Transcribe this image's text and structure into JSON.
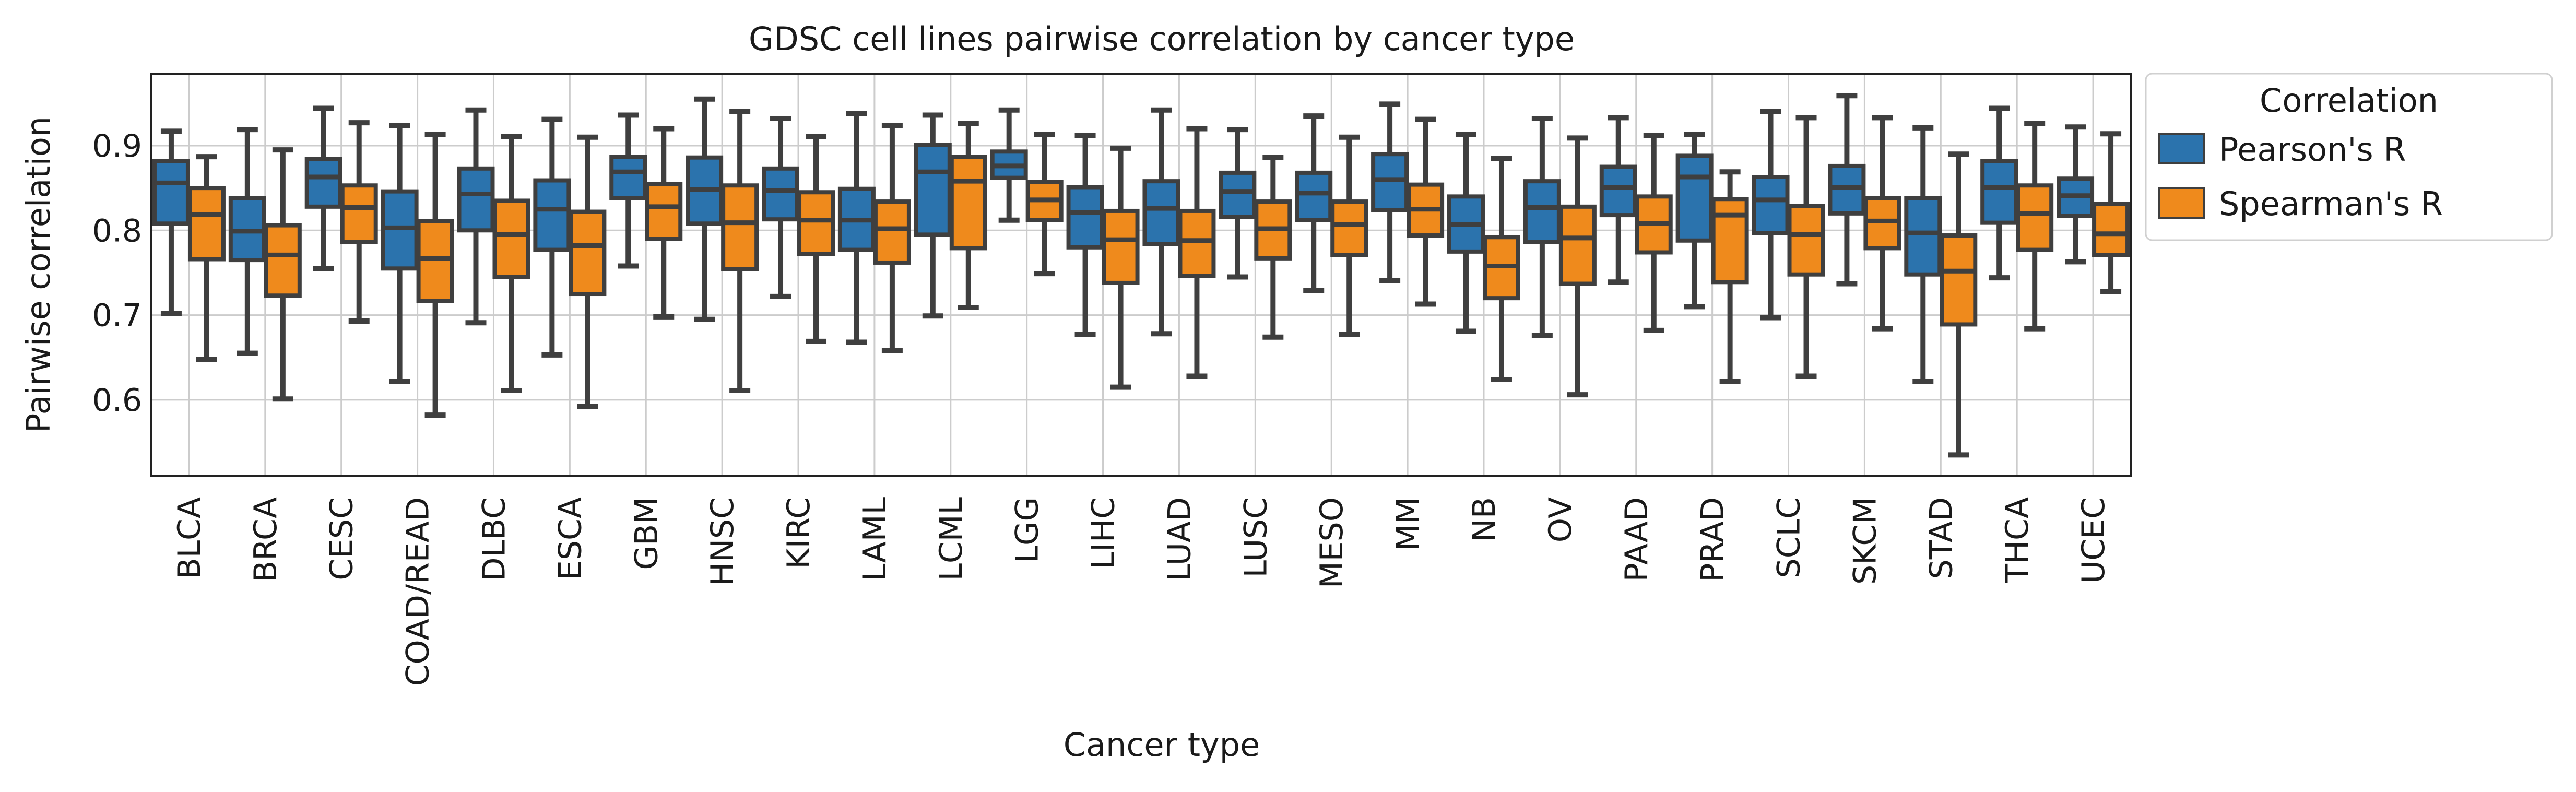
{
  "chart_data": {
    "type": "box",
    "title": "GDSC cell lines pairwise correlation by cancer type",
    "xlabel": "Cancer type",
    "ylabel": "Pairwise correlation",
    "ylim": [
      0.51,
      0.985
    ],
    "yticks": [
      0.6,
      0.7,
      0.8,
      0.9
    ],
    "ytick_labels": [
      "0.6",
      "0.7",
      "0.8",
      "0.9"
    ],
    "grid": true,
    "legend": {
      "title": "Correlation",
      "placement": "outside-top-right"
    },
    "categories": [
      "BLCA",
      "BRCA",
      "CESC",
      "COAD/READ",
      "DLBC",
      "ESCA",
      "GBM",
      "HNSC",
      "KIRC",
      "LAML",
      "LCML",
      "LGG",
      "LIHC",
      "LUAD",
      "LUSC",
      "MESO",
      "MM",
      "NB",
      "OV",
      "PAAD",
      "PRAD",
      "SCLC",
      "SKCM",
      "STAD",
      "THCA",
      "UCEC"
    ],
    "series": [
      {
        "name": "Pearson's R",
        "color": "#2b73ad",
        "boxes": [
          {
            "whislo": 0.702,
            "q1": 0.808,
            "med": 0.856,
            "q3": 0.882,
            "whishi": 0.917
          },
          {
            "whislo": 0.655,
            "q1": 0.765,
            "med": 0.799,
            "q3": 0.838,
            "whishi": 0.919
          },
          {
            "whislo": 0.755,
            "q1": 0.828,
            "med": 0.863,
            "q3": 0.884,
            "whishi": 0.944
          },
          {
            "whislo": 0.622,
            "q1": 0.755,
            "med": 0.803,
            "q3": 0.846,
            "whishi": 0.924
          },
          {
            "whislo": 0.691,
            "q1": 0.8,
            "med": 0.843,
            "q3": 0.873,
            "whishi": 0.942
          },
          {
            "whislo": 0.653,
            "q1": 0.777,
            "med": 0.825,
            "q3": 0.859,
            "whishi": 0.931
          },
          {
            "whislo": 0.758,
            "q1": 0.838,
            "med": 0.869,
            "q3": 0.887,
            "whishi": 0.936
          },
          {
            "whislo": 0.695,
            "q1": 0.808,
            "med": 0.848,
            "q3": 0.886,
            "whishi": 0.955
          },
          {
            "whislo": 0.722,
            "q1": 0.813,
            "med": 0.847,
            "q3": 0.873,
            "whishi": 0.932
          },
          {
            "whislo": 0.668,
            "q1": 0.777,
            "med": 0.812,
            "q3": 0.849,
            "whishi": 0.938
          },
          {
            "whislo": 0.699,
            "q1": 0.795,
            "med": 0.869,
            "q3": 0.901,
            "whishi": 0.936
          },
          {
            "whislo": 0.812,
            "q1": 0.862,
            "med": 0.876,
            "q3": 0.893,
            "whishi": 0.942
          },
          {
            "whislo": 0.677,
            "q1": 0.78,
            "med": 0.821,
            "q3": 0.851,
            "whishi": 0.912
          },
          {
            "whislo": 0.678,
            "q1": 0.784,
            "med": 0.826,
            "q3": 0.858,
            "whishi": 0.942
          },
          {
            "whislo": 0.745,
            "q1": 0.816,
            "med": 0.846,
            "q3": 0.868,
            "whishi": 0.919
          },
          {
            "whislo": 0.729,
            "q1": 0.812,
            "med": 0.844,
            "q3": 0.868,
            "whishi": 0.935
          },
          {
            "whislo": 0.741,
            "q1": 0.824,
            "med": 0.86,
            "q3": 0.89,
            "whishi": 0.949
          },
          {
            "whislo": 0.681,
            "q1": 0.775,
            "med": 0.807,
            "q3": 0.84,
            "whishi": 0.913
          },
          {
            "whislo": 0.676,
            "q1": 0.786,
            "med": 0.827,
            "q3": 0.858,
            "whishi": 0.932
          },
          {
            "whislo": 0.739,
            "q1": 0.818,
            "med": 0.851,
            "q3": 0.875,
            "whishi": 0.933
          },
          {
            "whislo": 0.71,
            "q1": 0.788,
            "med": 0.863,
            "q3": 0.888,
            "whishi": 0.913
          },
          {
            "whislo": 0.697,
            "q1": 0.797,
            "med": 0.836,
            "q3": 0.863,
            "whishi": 0.94
          },
          {
            "whislo": 0.737,
            "q1": 0.82,
            "med": 0.851,
            "q3": 0.876,
            "whishi": 0.959
          },
          {
            "whislo": 0.622,
            "q1": 0.748,
            "med": 0.797,
            "q3": 0.838,
            "whishi": 0.921
          },
          {
            "whislo": 0.744,
            "q1": 0.809,
            "med": 0.851,
            "q3": 0.882,
            "whishi": 0.944
          },
          {
            "whislo": 0.763,
            "q1": 0.817,
            "med": 0.841,
            "q3": 0.861,
            "whishi": 0.922
          }
        ]
      },
      {
        "name": "Spearman's R",
        "color": "#ef8a1c",
        "boxes": [
          {
            "whislo": 0.648,
            "q1": 0.766,
            "med": 0.819,
            "q3": 0.85,
            "whishi": 0.887
          },
          {
            "whislo": 0.601,
            "q1": 0.723,
            "med": 0.771,
            "q3": 0.806,
            "whishi": 0.895
          },
          {
            "whislo": 0.693,
            "q1": 0.786,
            "med": 0.827,
            "q3": 0.853,
            "whishi": 0.927
          },
          {
            "whislo": 0.582,
            "q1": 0.717,
            "med": 0.767,
            "q3": 0.811,
            "whishi": 0.913
          },
          {
            "whislo": 0.611,
            "q1": 0.745,
            "med": 0.795,
            "q3": 0.835,
            "whishi": 0.911
          },
          {
            "whislo": 0.592,
            "q1": 0.725,
            "med": 0.782,
            "q3": 0.822,
            "whishi": 0.91
          },
          {
            "whislo": 0.698,
            "q1": 0.79,
            "med": 0.828,
            "q3": 0.855,
            "whishi": 0.92
          },
          {
            "whislo": 0.611,
            "q1": 0.754,
            "med": 0.809,
            "q3": 0.853,
            "whishi": 0.94
          },
          {
            "whislo": 0.669,
            "q1": 0.772,
            "med": 0.812,
            "q3": 0.845,
            "whishi": 0.911
          },
          {
            "whislo": 0.658,
            "q1": 0.762,
            "med": 0.802,
            "q3": 0.834,
            "whishi": 0.924
          },
          {
            "whislo": 0.709,
            "q1": 0.779,
            "med": 0.858,
            "q3": 0.887,
            "whishi": 0.926
          },
          {
            "whislo": 0.749,
            "q1": 0.812,
            "med": 0.836,
            "q3": 0.857,
            "whishi": 0.913
          },
          {
            "whislo": 0.615,
            "q1": 0.738,
            "med": 0.789,
            "q3": 0.823,
            "whishi": 0.897
          },
          {
            "whislo": 0.628,
            "q1": 0.746,
            "med": 0.788,
            "q3": 0.823,
            "whishi": 0.92
          },
          {
            "whislo": 0.674,
            "q1": 0.767,
            "med": 0.802,
            "q3": 0.834,
            "whishi": 0.886
          },
          {
            "whislo": 0.677,
            "q1": 0.771,
            "med": 0.807,
            "q3": 0.834,
            "whishi": 0.91
          },
          {
            "whislo": 0.713,
            "q1": 0.794,
            "med": 0.825,
            "q3": 0.854,
            "whishi": 0.931
          },
          {
            "whislo": 0.624,
            "q1": 0.72,
            "med": 0.758,
            "q3": 0.792,
            "whishi": 0.885
          },
          {
            "whislo": 0.606,
            "q1": 0.737,
            "med": 0.791,
            "q3": 0.828,
            "whishi": 0.909
          },
          {
            "whislo": 0.682,
            "q1": 0.774,
            "med": 0.808,
            "q3": 0.84,
            "whishi": 0.912
          },
          {
            "whislo": 0.622,
            "q1": 0.739,
            "med": 0.818,
            "q3": 0.837,
            "whishi": 0.869
          },
          {
            "whislo": 0.628,
            "q1": 0.748,
            "med": 0.795,
            "q3": 0.829,
            "whishi": 0.933
          },
          {
            "whislo": 0.684,
            "q1": 0.779,
            "med": 0.811,
            "q3": 0.838,
            "whishi": 0.933
          },
          {
            "whislo": 0.535,
            "q1": 0.689,
            "med": 0.752,
            "q3": 0.794,
            "whishi": 0.89
          },
          {
            "whislo": 0.684,
            "q1": 0.777,
            "med": 0.82,
            "q3": 0.853,
            "whishi": 0.926
          },
          {
            "whislo": 0.728,
            "q1": 0.771,
            "med": 0.796,
            "q3": 0.831,
            "whishi": 0.914
          }
        ]
      }
    ]
  }
}
